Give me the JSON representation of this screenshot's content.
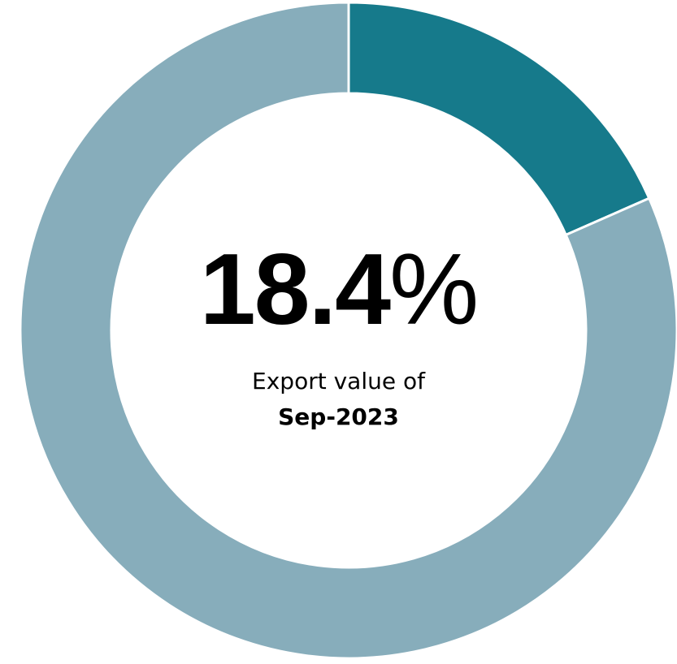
{
  "chart_data": {
    "type": "pie",
    "variant": "donut",
    "slices": [
      {
        "value": 18.4,
        "color": "#167a8b"
      },
      {
        "value": 81.6,
        "color": "#87adbb"
      }
    ],
    "center_value": "18.4",
    "center_unit": "%",
    "caption_line1": "Export value of",
    "caption_line2": "Sep-2023"
  }
}
